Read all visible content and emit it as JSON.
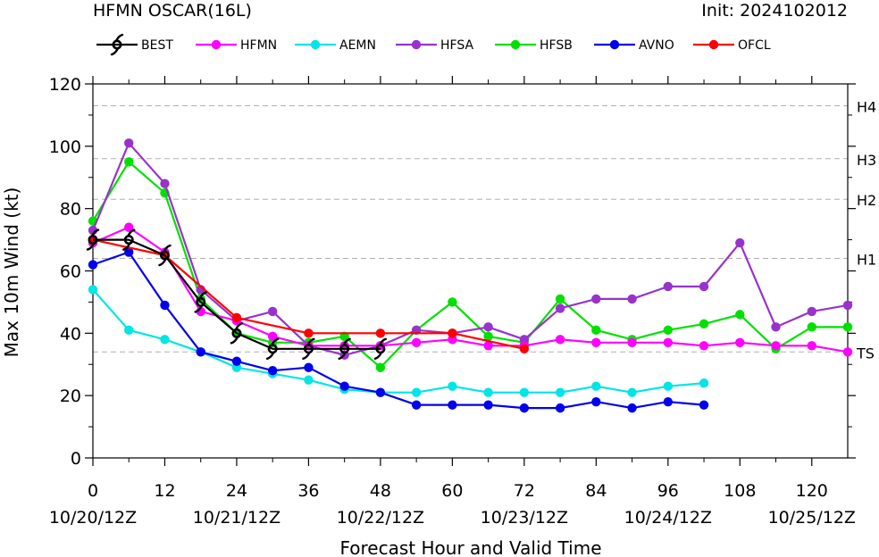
{
  "chart_data": {
    "type": "line",
    "title": "HFMN OSCAR(16L)",
    "init_label": "Init: 2024102012",
    "xlabel": "Forecast Hour and Valid Time",
    "ylabel": "Max 10m Wind (kt)",
    "xlim": [
      0,
      126
    ],
    "ylim": [
      0,
      120
    ],
    "xticks": [
      0,
      12,
      24,
      36,
      48,
      60,
      72,
      84,
      96,
      108,
      120
    ],
    "xtick_labels": [
      "0",
      "12",
      "24",
      "36",
      "48",
      "60",
      "72",
      "84",
      "96",
      "108",
      "120"
    ],
    "date_labels": [
      {
        "x": 0,
        "label": "10/20/12Z"
      },
      {
        "x": 24,
        "label": "10/21/12Z"
      },
      {
        "x": 48,
        "label": "10/22/12Z"
      },
      {
        "x": 72,
        "label": "10/23/12Z"
      },
      {
        "x": 96,
        "label": "10/24/12Z"
      },
      {
        "x": 120,
        "label": "10/25/12Z"
      }
    ],
    "yticks": [
      0,
      20,
      40,
      60,
      80,
      100,
      120
    ],
    "ytick_labels": [
      "0",
      "20",
      "40",
      "60",
      "80",
      "100",
      "120"
    ],
    "intensity_thresholds": [
      {
        "label": "TS",
        "value": 34
      },
      {
        "label": "H1",
        "value": 64
      },
      {
        "label": "H2",
        "value": 83
      },
      {
        "label": "H3",
        "value": 96
      },
      {
        "label": "H4",
        "value": 113
      }
    ],
    "legend_position": "top",
    "series": [
      {
        "name": "BEST",
        "color": "#000000",
        "x": [
          0,
          6,
          12,
          18,
          24,
          30,
          36,
          42,
          48
        ],
        "y": [
          70,
          70,
          65,
          50,
          40,
          35,
          35,
          35,
          35
        ]
      },
      {
        "name": "HFMN",
        "color": "#ff00ff",
        "x": [
          0,
          6,
          12,
          18,
          24,
          30,
          36,
          42,
          48,
          54,
          60,
          66,
          72,
          78,
          84,
          90,
          96,
          102,
          108,
          114,
          120,
          126
        ],
        "y": [
          69,
          74,
          66,
          47,
          44,
          39,
          36,
          36,
          36,
          37,
          38,
          36,
          36,
          38,
          37,
          37,
          37,
          36,
          37,
          36,
          36,
          34
        ]
      },
      {
        "name": "AEMN",
        "color": "#00e5e5",
        "x": [
          0,
          6,
          12,
          18,
          24,
          30,
          36,
          42,
          48,
          54,
          60,
          66,
          72,
          78,
          84,
          90,
          96,
          102
        ],
        "y": [
          54,
          41,
          38,
          34,
          29,
          27,
          25,
          22,
          21,
          21,
          23,
          21,
          21,
          21,
          23,
          21,
          23,
          24
        ]
      },
      {
        "name": "HFSA",
        "color": "#9932cc",
        "x": [
          0,
          6,
          12,
          18,
          24,
          30,
          36,
          42,
          48,
          54,
          60,
          66,
          72,
          78,
          84,
          90,
          96,
          102,
          108,
          114,
          120,
          126
        ],
        "y": [
          73,
          101,
          88,
          54,
          44,
          47,
          36,
          33,
          36,
          41,
          40,
          42,
          38,
          48,
          51,
          51,
          55,
          55,
          69,
          42,
          47,
          49
        ]
      },
      {
        "name": "HFSB",
        "color": "#00e000",
        "x": [
          0,
          6,
          12,
          18,
          24,
          30,
          36,
          42,
          48,
          54,
          60,
          66,
          72,
          78,
          84,
          90,
          96,
          102,
          108,
          114,
          120,
          126
        ],
        "y": [
          76,
          95,
          85,
          51,
          40,
          37,
          37,
          39,
          29,
          41,
          50,
          39,
          37,
          51,
          41,
          38,
          41,
          43,
          46,
          35,
          42,
          42
        ]
      },
      {
        "name": "AVNO",
        "color": "#0000ee",
        "x": [
          0,
          6,
          12,
          18,
          24,
          30,
          36,
          42,
          48,
          54,
          60,
          66,
          72,
          78,
          84,
          90,
          96,
          102
        ],
        "y": [
          62,
          66,
          49,
          34,
          31,
          28,
          29,
          23,
          21,
          17,
          17,
          17,
          16,
          16,
          18,
          16,
          18,
          17
        ]
      },
      {
        "name": "OFCL",
        "color": "#ff0000",
        "x": [
          0,
          12,
          24,
          36,
          48,
          60,
          72
        ],
        "y": [
          70,
          65,
          45,
          40,
          40,
          40,
          35
        ]
      }
    ]
  }
}
